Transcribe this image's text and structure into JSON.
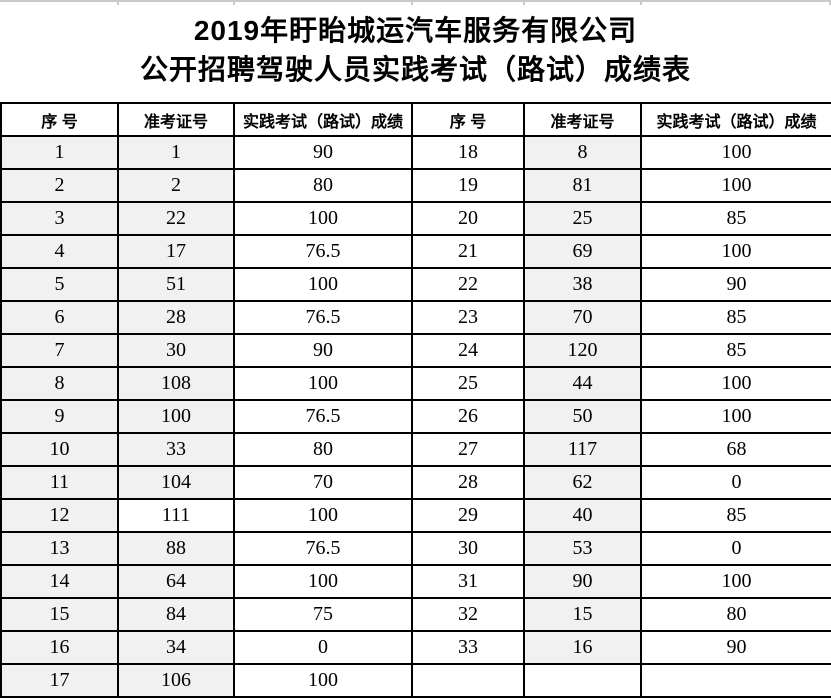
{
  "title": {
    "line1": "2019年盱眙城运汽车服务有限公司",
    "line2": "公开招聘驾驶人员实践考试（路试）成绩表"
  },
  "table": {
    "headers": [
      "序  号",
      "准考证号",
      "实践考试（路试）成绩",
      "序  号",
      "准考证号",
      "实践考试（路试）成绩"
    ],
    "rows": [
      [
        "1",
        "1",
        "90",
        "18",
        "8",
        "100"
      ],
      [
        "2",
        "2",
        "80",
        "19",
        "81",
        "100"
      ],
      [
        "3",
        "22",
        "100",
        "20",
        "25",
        "85"
      ],
      [
        "4",
        "17",
        "76.5",
        "21",
        "69",
        "100"
      ],
      [
        "5",
        "51",
        "100",
        "22",
        "38",
        "90"
      ],
      [
        "6",
        "28",
        "76.5",
        "23",
        "70",
        "85"
      ],
      [
        "7",
        "30",
        "90",
        "24",
        "120",
        "85"
      ],
      [
        "8",
        "108",
        "100",
        "25",
        "44",
        "100"
      ],
      [
        "9",
        "100",
        "76.5",
        "26",
        "50",
        "100"
      ],
      [
        "10",
        "33",
        "80",
        "27",
        "117",
        "68"
      ],
      [
        "11",
        "104",
        "70",
        "28",
        "62",
        "0"
      ],
      [
        "12",
        "111",
        "100",
        "29",
        "40",
        "85"
      ],
      [
        "13",
        "88",
        "76.5",
        "30",
        "53",
        "0"
      ],
      [
        "14",
        "64",
        "100",
        "31",
        "90",
        "100"
      ],
      [
        "15",
        "84",
        "75",
        "32",
        "15",
        "80"
      ],
      [
        "16",
        "34",
        "0",
        "33",
        "16",
        "90"
      ],
      [
        "17",
        "106",
        "100",
        "",
        "",
        ""
      ]
    ],
    "shaded_columns": [
      0,
      1,
      4
    ],
    "unshaded_cells": [
      [
        11,
        1
      ],
      [
        16,
        4
      ]
    ]
  },
  "colors": {
    "shaded_cell": "#f1f1f1",
    "border": "#000000",
    "gridline_remnant": "#c9c9c9"
  },
  "layout_ticks_x": [
    117,
    233,
    411,
    523,
    640,
    829
  ]
}
